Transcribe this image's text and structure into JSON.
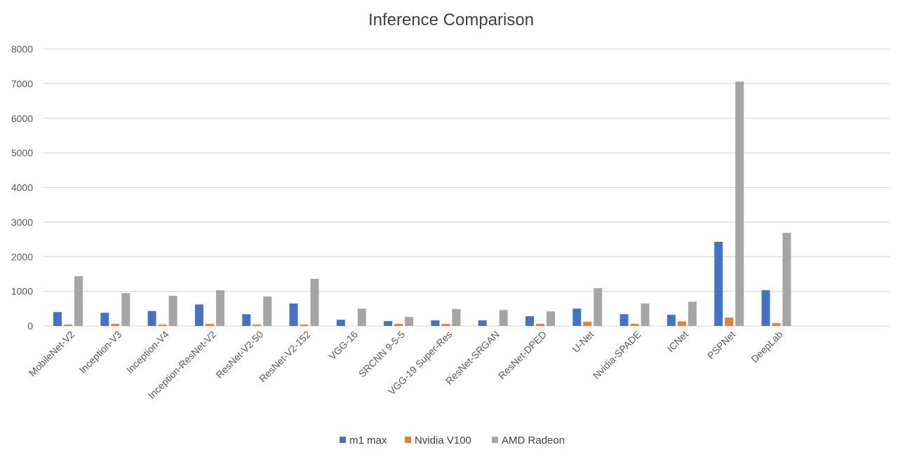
{
  "chart_data": {
    "type": "bar",
    "title": "Inference Comparison",
    "xlabel": "",
    "ylabel": "",
    "ylim": [
      0,
      8000
    ],
    "y_ticks": [
      0,
      1000,
      2000,
      3000,
      4000,
      5000,
      6000,
      7000,
      8000
    ],
    "grid": true,
    "legend_position": "bottom",
    "categories": [
      "MobileNet-V2",
      "Inception-V3",
      "Inception-V4",
      "Inception-ResNet-V2",
      "ResNet-V2-50",
      "ResNet-V2-152",
      "VGG-16",
      "SRCNN 9-5-5",
      "VGG-19 Super-Res",
      "ResNet-SRGAN",
      "ResNet-DPED",
      "U-Net",
      "Nvidia-SPADE",
      "ICNet",
      "PSPNet",
      "DeepLab"
    ],
    "series": [
      {
        "name": "m1 max",
        "color": "#4472C4",
        "values": [
          400,
          380,
          430,
          620,
          340,
          650,
          180,
          140,
          160,
          160,
          280,
          500,
          340,
          320,
          2430,
          1030
        ]
      },
      {
        "name": "Nvidia V100",
        "color": "#ED7D31",
        "values": [
          40,
          60,
          40,
          60,
          40,
          40,
          0,
          60,
          60,
          0,
          60,
          120,
          60,
          130,
          240,
          80
        ]
      },
      {
        "name": "AMD Radeon",
        "color": "#A5A5A5",
        "values": [
          1440,
          950,
          870,
          1030,
          850,
          1360,
          500,
          260,
          490,
          460,
          420,
          1090,
          650,
          700,
          7060,
          2690
        ]
      }
    ]
  }
}
